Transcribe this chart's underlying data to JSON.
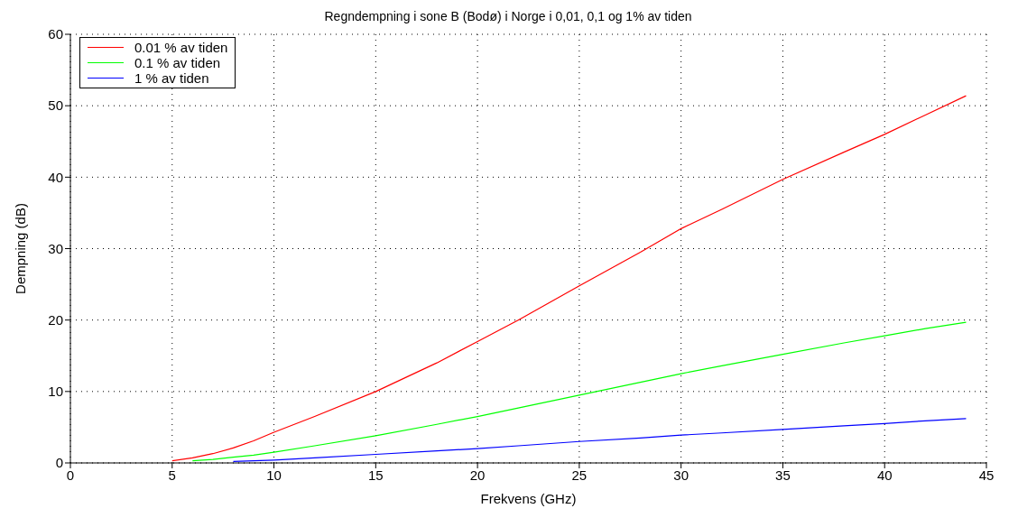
{
  "chart_data": {
    "type": "line",
    "title": "Regndempning i  sone B (Bodø) i Norge i 0,01, 0,1 og 1% av tiden",
    "xlabel": "Frekvens (GHz)",
    "ylabel": "Dempning (dB)",
    "x": [
      5,
      6,
      7,
      8,
      9,
      10,
      12,
      15,
      18,
      20,
      22,
      25,
      28,
      30,
      32,
      35,
      38,
      40,
      42,
      44
    ],
    "series": [
      {
        "name": "0.01 % av tiden",
        "color": "#ff0000",
        "values": [
          0.3,
          0.7,
          1.3,
          2.1,
          3.1,
          4.3,
          6.5,
          10,
          14,
          17,
          20,
          24.8,
          29.5,
          32.8,
          35.5,
          39.7,
          43.5,
          46,
          48.7,
          51.4
        ]
      },
      {
        "name": "0.1 % av tiden",
        "color": "#00ff00",
        "values": [
          null,
          0.3,
          0.5,
          0.8,
          1.1,
          1.5,
          2.4,
          3.8,
          5.4,
          6.5,
          7.7,
          9.5,
          11.3,
          12.5,
          13.6,
          15.2,
          16.8,
          17.8,
          18.8,
          19.7
        ]
      },
      {
        "name": "1 % av tiden",
        "color": "#0000ff",
        "values": [
          null,
          null,
          null,
          0.2,
          0.3,
          0.4,
          0.7,
          1.2,
          1.7,
          2,
          2.4,
          3,
          3.5,
          3.9,
          4.2,
          4.7,
          5.2,
          5.5,
          5.9,
          6.2
        ]
      }
    ],
    "xlim": [
      0,
      45
    ],
    "xticks": [
      0,
      5,
      10,
      15,
      20,
      25,
      30,
      35,
      40,
      45
    ],
    "ylim": [
      0,
      60
    ],
    "yticks": [
      0,
      10,
      20,
      30,
      40,
      50,
      60
    ],
    "grid": true,
    "legend": "top left",
    "marker": "none",
    "line_style": "solid"
  }
}
